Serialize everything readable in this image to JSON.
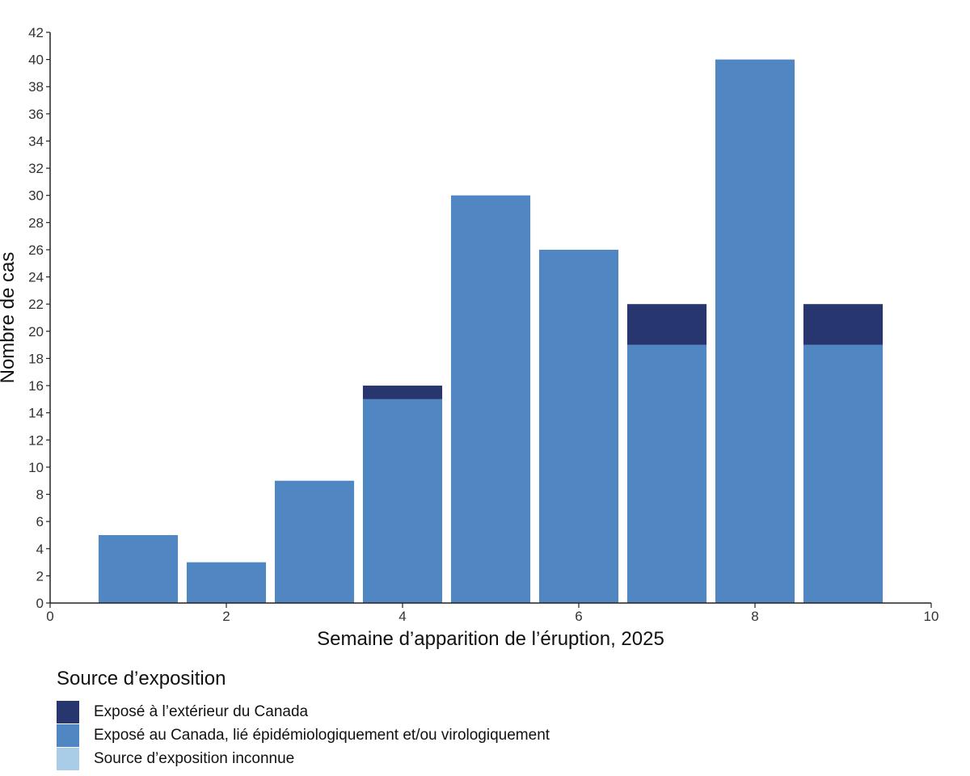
{
  "chart_data": {
    "type": "bar",
    "stacked": true,
    "x": [
      1,
      2,
      3,
      4,
      5,
      6,
      7,
      8,
      9
    ],
    "series": [
      {
        "name": "Exposé au Canada, lié épidémiologiquement et/ou virologiquement",
        "color": "#5086C1",
        "values": [
          5,
          3,
          9,
          15,
          30,
          26,
          19,
          40,
          19
        ]
      },
      {
        "name": "Exposé à l’extérieur du Canada",
        "color": "#27366F",
        "values": [
          0,
          0,
          0,
          1,
          0,
          0,
          3,
          0,
          3
        ]
      },
      {
        "name": "Source d’exposition inconnue",
        "color": "#A9CDE6",
        "values": [
          0,
          0,
          0,
          0,
          0,
          0,
          0,
          0,
          0
        ]
      }
    ],
    "xlabel": "Semaine d’apparition de l’éruption, 2025",
    "ylabel": "Nombre de cas",
    "xlim": [
      0,
      10
    ],
    "ylim": [
      0,
      42
    ],
    "xticks": [
      0,
      2,
      4,
      6,
      8,
      10
    ],
    "yticks": [
      0,
      2,
      4,
      6,
      8,
      10,
      12,
      14,
      16,
      18,
      20,
      22,
      24,
      26,
      28,
      30,
      32,
      34,
      36,
      38,
      40,
      42
    ],
    "grid": false,
    "legend_placement": "bottom-left"
  },
  "legend": {
    "title": "Source d’exposition",
    "items": [
      {
        "label": "Exposé à l’extérieur du Canada",
        "color": "#27366F"
      },
      {
        "label": "Exposé au Canada, lié épidémiologiquement et/ou virologiquement",
        "color": "#5086C1"
      },
      {
        "label": "Source d’exposition inconnue",
        "color": "#A9CDE6"
      }
    ]
  }
}
